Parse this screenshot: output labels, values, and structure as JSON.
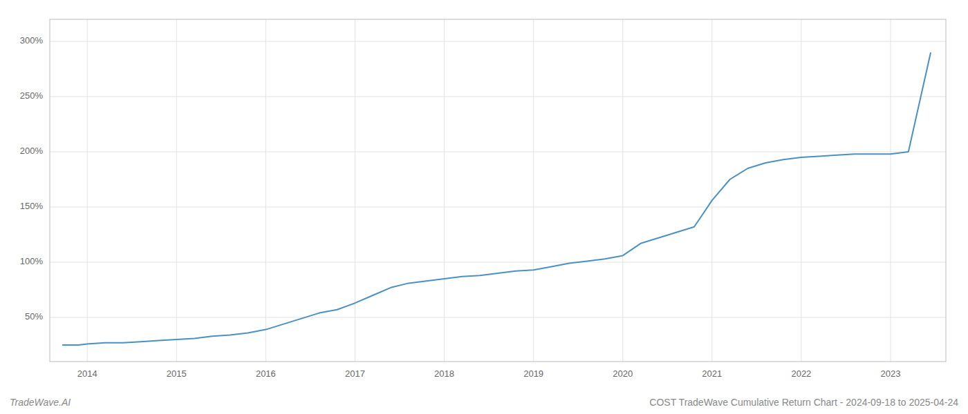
{
  "chart_data": {
    "type": "line",
    "title": "COST TradeWave Cumulative Return Chart - 2024-09-18 to 2025-04-24",
    "annotations": [
      "TradeWave.AI"
    ],
    "x": [
      2013.72,
      2013.9,
      2014.0,
      2014.2,
      2014.4,
      2014.6,
      2014.8,
      2015.0,
      2015.2,
      2015.4,
      2015.6,
      2015.8,
      2016.0,
      2016.2,
      2016.4,
      2016.6,
      2016.8,
      2017.0,
      2017.2,
      2017.4,
      2017.6,
      2017.8,
      2018.0,
      2018.2,
      2018.4,
      2018.6,
      2018.8,
      2019.0,
      2019.2,
      2019.4,
      2019.6,
      2019.8,
      2020.0,
      2020.2,
      2020.4,
      2020.6,
      2020.8,
      2021.0,
      2021.2,
      2021.4,
      2021.6,
      2021.8,
      2022.0,
      2022.2,
      2022.4,
      2022.6,
      2022.8,
      2023.0,
      2023.2,
      2023.45
    ],
    "values": [
      25,
      25,
      26,
      27,
      27,
      28,
      29,
      30,
      31,
      33,
      34,
      36,
      39,
      44,
      49,
      54,
      57,
      63,
      70,
      77,
      81,
      83,
      85,
      87,
      88,
      90,
      92,
      93,
      96,
      99,
      101,
      103,
      106,
      117,
      122,
      127,
      132,
      156,
      175,
      185,
      190,
      193,
      195,
      196,
      197,
      198,
      198,
      198,
      200,
      290
    ],
    "color": "#4a90c4",
    "xlim": [
      2013.58,
      2023.62
    ],
    "xticks": [
      2014,
      2015,
      2016,
      2017,
      2018,
      2019,
      2020,
      2021,
      2022,
      2023
    ],
    "ylim": [
      10,
      320
    ],
    "yticks": [
      {
        "value": 50,
        "label": "50%"
      },
      {
        "value": 100,
        "label": "100%"
      },
      {
        "value": 150,
        "label": "150%"
      },
      {
        "value": 200,
        "label": "200%"
      },
      {
        "value": 250,
        "label": "250%"
      },
      {
        "value": 300,
        "label": "300%"
      }
    ],
    "grid": true
  }
}
